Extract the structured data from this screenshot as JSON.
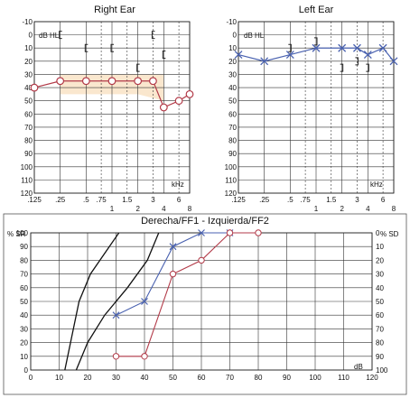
{
  "colors": {
    "right": "#b23a48",
    "left": "#4a62b0",
    "shade": "#f6d3a6",
    "speech_black": "#111111"
  },
  "audiogram_axes": {
    "y_unit": "dB HL",
    "x_unit": "kHz",
    "y_ticks": [
      "-10",
      "0",
      "10",
      "20",
      "30",
      "40",
      "50",
      "60",
      "70",
      "80",
      "90",
      "100",
      "110",
      "120"
    ],
    "x_ticks_top": [
      ".125",
      ".25",
      ".5",
      ".75",
      "1.5",
      "3",
      "6"
    ],
    "x_ticks_bottom": [
      "1",
      "2",
      "4",
      "8"
    ],
    "ylim": [
      -10,
      120
    ]
  },
  "speech_axes": {
    "left_unit": "% SR",
    "right_unit": "% SD",
    "x_unit": "dB",
    "left_ticks": [
      "100",
      "90",
      "80",
      "70",
      "60",
      "50",
      "40",
      "30",
      "20",
      "10",
      "0"
    ],
    "right_ticks": [
      "0",
      "10",
      "20",
      "30",
      "40",
      "50",
      "60",
      "70",
      "80",
      "90",
      "100"
    ],
    "x_ticks": [
      "0",
      "10",
      "20",
      "30",
      "40",
      "50",
      "60",
      "70",
      "80",
      "90",
      "100",
      "110",
      "120"
    ]
  },
  "chart_data": [
    {
      "type": "line",
      "title": "Right Ear",
      "xlabel": "kHz",
      "ylabel": "dB HL",
      "ylim": [
        -10,
        120
      ],
      "y_inverted": true,
      "grid": true,
      "series": [
        {
          "marker": "circle",
          "x": [
            0.125,
            0.25,
            0.5,
            1,
            2,
            3,
            4,
            6,
            8
          ],
          "values": [
            40,
            35,
            35,
            35,
            35,
            35,
            55,
            50,
            45
          ]
        },
        {
          "marker": "bracket-left",
          "x": [
            0.25,
            0.5,
            1,
            2,
            3,
            4
          ],
          "values": [
            0,
            10,
            10,
            25,
            0,
            15
          ]
        }
      ],
      "shaded_band": {
        "x": [
          0.25,
          0.5,
          1,
          2,
          4
        ],
        "top": [
          30,
          30,
          30,
          30,
          30
        ],
        "bottom": [
          45,
          45,
          45,
          45,
          50
        ]
      }
    },
    {
      "type": "line",
      "title": "Left Ear",
      "xlabel": "kHz",
      "ylabel": "dB HL",
      "ylim": [
        -10,
        120
      ],
      "y_inverted": true,
      "grid": true,
      "series": [
        {
          "marker": "x",
          "x": [
            0.125,
            0.25,
            0.5,
            1,
            2,
            3,
            4,
            6,
            8
          ],
          "values": [
            15,
            20,
            15,
            10,
            10,
            10,
            15,
            10,
            20
          ]
        },
        {
          "marker": "bracket-right",
          "x": [
            0.5,
            1,
            2,
            3,
            4
          ],
          "values": [
            10,
            5,
            25,
            20,
            25
          ]
        }
      ]
    },
    {
      "type": "line",
      "title": "Derecha/FF1 - Izquierda/FF2",
      "xlabel": "dB",
      "ylabel": "% SR",
      "ylabel_right": "% SD",
      "xlim": [
        0,
        120
      ],
      "ylim": [
        0,
        100
      ],
      "grid": true,
      "series": [
        {
          "color": "black",
          "x": [
            12,
            14,
            17,
            21,
            26,
            31
          ],
          "values": [
            0,
            20,
            50,
            70,
            85,
            100
          ]
        },
        {
          "color": "black",
          "x": [
            16,
            20,
            26,
            34,
            41,
            45
          ],
          "values": [
            0,
            20,
            40,
            60,
            80,
            100
          ]
        },
        {
          "color": "left",
          "marker": "x",
          "x": [
            30,
            40,
            50,
            60,
            70
          ],
          "values": [
            40,
            50,
            90,
            100,
            100
          ]
        },
        {
          "color": "right",
          "marker": "circle",
          "x": [
            30,
            40,
            50,
            60,
            70,
            80
          ],
          "values": [
            10,
            10,
            70,
            80,
            100,
            100
          ]
        }
      ]
    }
  ]
}
